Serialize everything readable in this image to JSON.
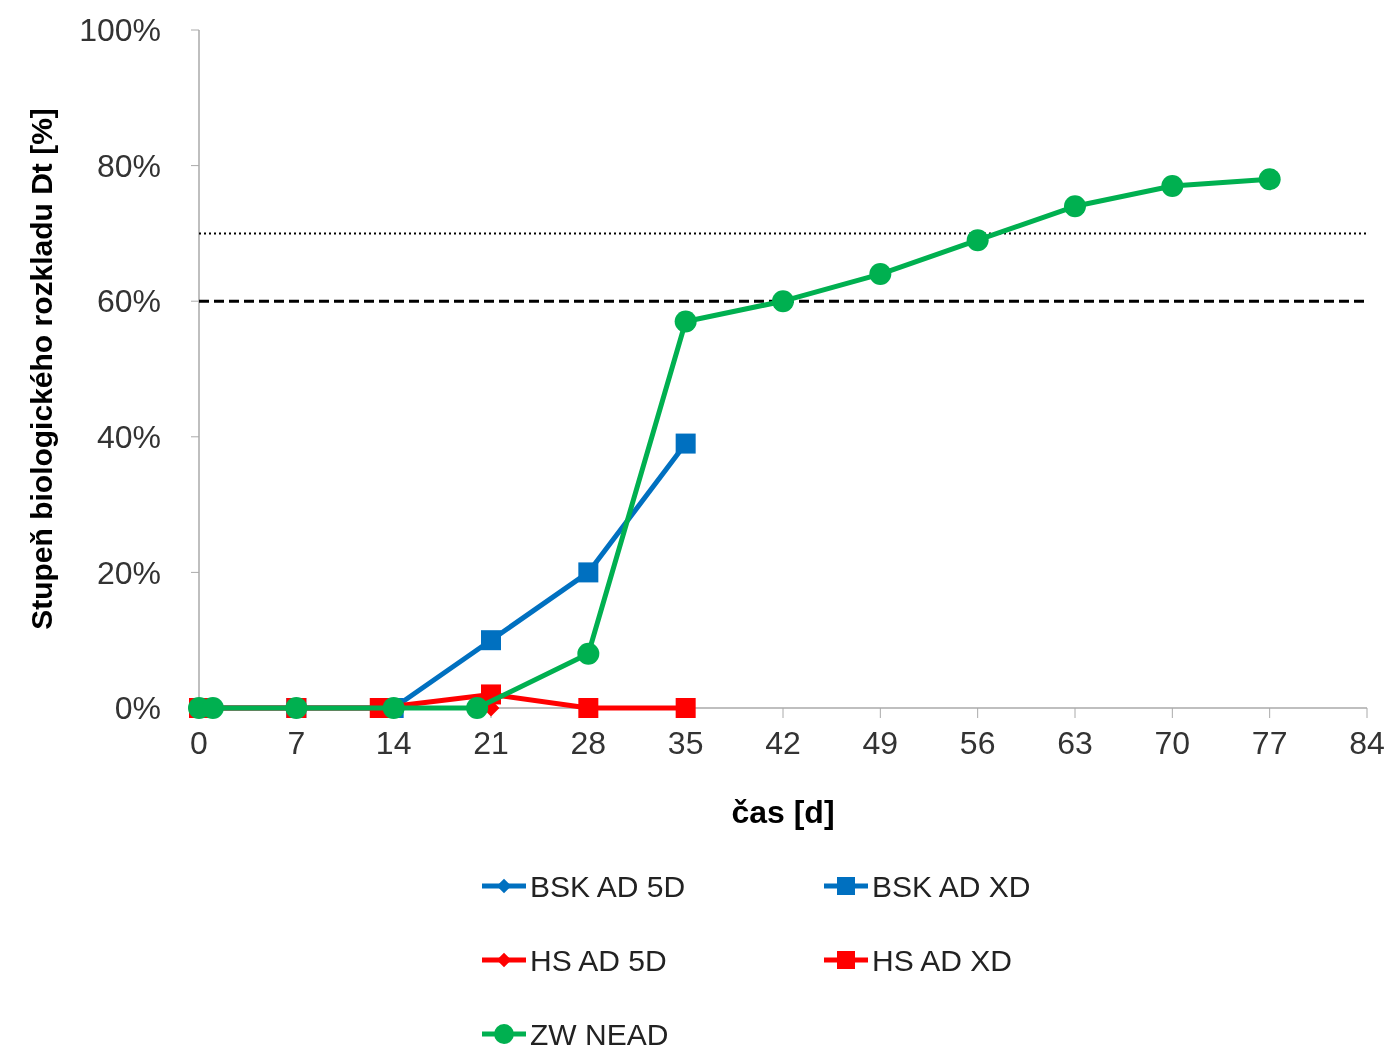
{
  "chart_data": {
    "type": "line",
    "xlabel": "čas [d]",
    "ylabel": "Stupeň biologického rozkladu Dt [%]",
    "xlim": [
      0,
      84
    ],
    "xticks": [
      0,
      7,
      14,
      21,
      28,
      35,
      42,
      49,
      56,
      63,
      70,
      77,
      84
    ],
    "ylim": [
      0,
      100
    ],
    "yticks": [
      {
        "value": 0,
        "label": "0%"
      },
      {
        "value": 20,
        "label": "20%"
      },
      {
        "value": 40,
        "label": "40%"
      },
      {
        "value": 60,
        "label": "60%"
      },
      {
        "value": 80,
        "label": "80%"
      },
      {
        "value": 100,
        "label": "100%"
      }
    ],
    "grid": false,
    "legend": "bottom",
    "ref_lines": [
      {
        "axis": "y",
        "value": 70,
        "color": "#000000",
        "line_style": "dotted"
      },
      {
        "axis": "y",
        "value": 60,
        "color": "#000000",
        "line_style": "dashed"
      }
    ],
    "series": [
      {
        "name": "BSK AD 5D",
        "color": "#0070c0",
        "marker": "diamond"
      },
      {
        "name": "BSK AD XD",
        "color": "#0070c0",
        "marker": "square",
        "x": [
          0,
          7,
          14,
          21,
          28,
          35
        ],
        "values": [
          0,
          0,
          0,
          10,
          20,
          39
        ]
      },
      {
        "name": "HS AD 5D",
        "color": "#ff0000",
        "marker": "diamond",
        "x": [
          21
        ],
        "values": [
          0
        ]
      },
      {
        "name": "HS AD XD",
        "color": "#ff0000",
        "marker": "square",
        "x": [
          0,
          7,
          13,
          21,
          28,
          35
        ],
        "values": [
          0,
          0,
          0,
          2,
          0,
          0
        ]
      },
      {
        "name": "ZW NEAD",
        "color": "#00b050",
        "marker": "circle",
        "x": [
          0,
          1,
          7,
          14,
          20,
          28,
          35,
          42,
          49,
          56,
          63,
          70,
          77
        ],
        "values": [
          0,
          0,
          0,
          0,
          0,
          8,
          57,
          60,
          64,
          69,
          74,
          77,
          78
        ]
      }
    ]
  }
}
